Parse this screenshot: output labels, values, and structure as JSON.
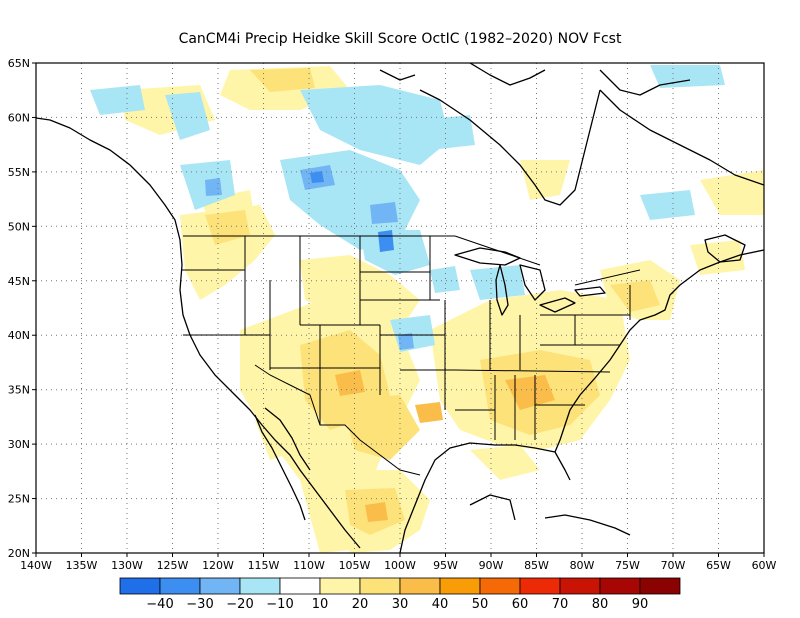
{
  "title": "CanCM4i Precip Heidke Skill Score OctIC (1982–2020) NOV Fcst",
  "lon_ticks": [
    "140W",
    "135W",
    "130W",
    "125W",
    "120W",
    "115W",
    "110W",
    "105W",
    "100W",
    "95W",
    "90W",
    "85W",
    "80W",
    "75W",
    "70W",
    "65W",
    "60W"
  ],
  "lat_ticks": [
    "65N",
    "60N",
    "55N",
    "50N",
    "45N",
    "40N",
    "35N",
    "30N",
    "25N",
    "20N"
  ],
  "extent": {
    "lon_min": -140,
    "lon_max": -60,
    "lat_min": 20,
    "lat_max": 65
  },
  "grid": true,
  "colorbar": {
    "labels": [
      "−40",
      "−30",
      "−20",
      "−10",
      "10",
      "20",
      "30",
      "40",
      "50",
      "60",
      "70",
      "80",
      "90"
    ],
    "colors": [
      "#1e6fe8",
      "#3c8ff0",
      "#72b5f5",
      "#a9e6f5",
      "#ffffff",
      "#fff5a8",
      "#fde27a",
      "#fbbd4a",
      "#f89c08",
      "#f56a07",
      "#ec2a06",
      "#c91405",
      "#a60604",
      "#8a0202"
    ]
  },
  "colors": {
    "coast": "#000000",
    "grid": "#777777"
  }
}
